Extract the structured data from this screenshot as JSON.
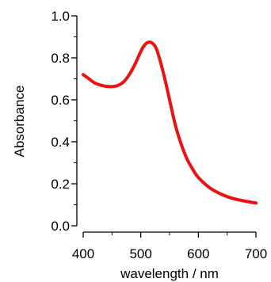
{
  "chart_data": {
    "type": "line",
    "title": "",
    "xlabel": "wavelength / nm",
    "ylabel": "Absorbance",
    "xlim": [
      400,
      700
    ],
    "ylim": [
      0.0,
      1.0
    ],
    "x_ticks": [
      400,
      500,
      600,
      700
    ],
    "x_tick_labels": [
      "400",
      "500",
      "600",
      "700"
    ],
    "x_minor_ticks": [
      450,
      550,
      650
    ],
    "y_ticks": [
      0.0,
      0.2,
      0.4,
      0.6,
      0.8,
      1.0
    ],
    "y_tick_labels": [
      "0.0",
      "0.2",
      "0.4",
      "0.6",
      "0.8",
      "1.0"
    ],
    "y_minor_ticks": [
      0.1,
      0.3,
      0.5,
      0.7,
      0.9
    ],
    "grid": false,
    "legend": "none",
    "series": [
      {
        "color": "#ee1111",
        "x": [
          400,
          410,
          420,
          430,
          440,
          450,
          460,
          470,
          480,
          490,
          500,
          505,
          510,
          515,
          520,
          525,
          530,
          540,
          550,
          560,
          570,
          580,
          590,
          600,
          620,
          640,
          660,
          680,
          700
        ],
        "y": [
          0.72,
          0.7,
          0.68,
          0.67,
          0.664,
          0.663,
          0.668,
          0.685,
          0.72,
          0.77,
          0.83,
          0.855,
          0.87,
          0.875,
          0.87,
          0.855,
          0.82,
          0.72,
          0.6,
          0.48,
          0.39,
          0.32,
          0.27,
          0.23,
          0.18,
          0.15,
          0.13,
          0.118,
          0.108
        ]
      }
    ]
  }
}
